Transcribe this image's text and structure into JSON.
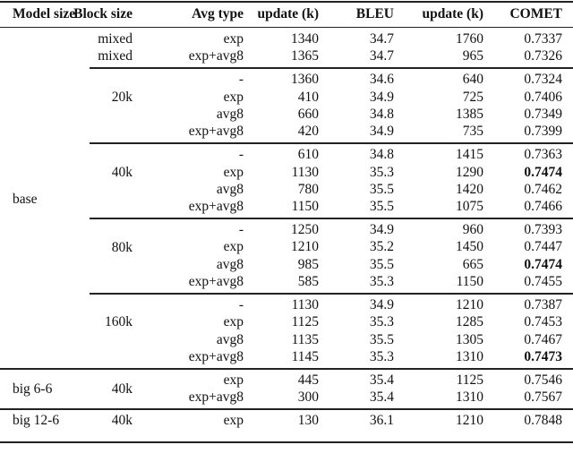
{
  "table": {
    "headers": [
      "Model size",
      "Block size",
      "Avg type",
      "update (k)",
      "BLEU",
      "update (k)",
      "COMET"
    ],
    "groups": [
      {
        "model": "",
        "block_labels": [
          "mixed",
          "mixed"
        ],
        "rows": [
          {
            "avg": "exp",
            "upd1": "1340",
            "bleu": "34.7",
            "upd2": "1760",
            "comet": "0.7337",
            "bold": false
          },
          {
            "avg": "exp+avg8",
            "upd1": "1365",
            "bleu": "34.7",
            "upd2": "965",
            "comet": "0.7326",
            "bold": false
          }
        ]
      },
      {
        "model": "",
        "block": "20k",
        "rows": [
          {
            "avg": "-",
            "upd1": "1360",
            "bleu": "34.6",
            "upd2": "640",
            "comet": "0.7324",
            "bold": false
          },
          {
            "avg": "exp",
            "upd1": "410",
            "bleu": "34.9",
            "upd2": "725",
            "comet": "0.7406",
            "bold": false
          },
          {
            "avg": "avg8",
            "upd1": "660",
            "bleu": "34.8",
            "upd2": "1385",
            "comet": "0.7349",
            "bold": false
          },
          {
            "avg": "exp+avg8",
            "upd1": "420",
            "bleu": "34.9",
            "upd2": "735",
            "comet": "0.7399",
            "bold": false
          }
        ]
      },
      {
        "model": "",
        "block": "40k",
        "rows": [
          {
            "avg": "-",
            "upd1": "610",
            "bleu": "34.8",
            "upd2": "1415",
            "comet": "0.7363",
            "bold": false
          },
          {
            "avg": "exp",
            "upd1": "1130",
            "bleu": "35.3",
            "upd2": "1290",
            "comet": "0.7474",
            "bold": true
          },
          {
            "avg": "avg8",
            "upd1": "780",
            "bleu": "35.5",
            "upd2": "1420",
            "comet": "0.7462",
            "bold": false
          },
          {
            "avg": "exp+avg8",
            "upd1": "1150",
            "bleu": "35.5",
            "upd2": "1075",
            "comet": "0.7466",
            "bold": false
          }
        ]
      },
      {
        "model": "",
        "block": "80k",
        "rows": [
          {
            "avg": "-",
            "upd1": "1250",
            "bleu": "34.9",
            "upd2": "960",
            "comet": "0.7393",
            "bold": false
          },
          {
            "avg": "exp",
            "upd1": "1210",
            "bleu": "35.2",
            "upd2": "1450",
            "comet": "0.7447",
            "bold": false
          },
          {
            "avg": "avg8",
            "upd1": "985",
            "bleu": "35.5",
            "upd2": "665",
            "comet": "0.7474",
            "bold": true
          },
          {
            "avg": "exp+avg8",
            "upd1": "585",
            "bleu": "35.3",
            "upd2": "1150",
            "comet": "0.7455",
            "bold": false
          }
        ]
      },
      {
        "model": "",
        "block": "160k",
        "rows": [
          {
            "avg": "-",
            "upd1": "1130",
            "bleu": "34.9",
            "upd2": "1210",
            "comet": "0.7387",
            "bold": false
          },
          {
            "avg": "exp",
            "upd1": "1125",
            "bleu": "35.3",
            "upd2": "1285",
            "comet": "0.7453",
            "bold": false
          },
          {
            "avg": "avg8",
            "upd1": "1135",
            "bleu": "35.5",
            "upd2": "1305",
            "comet": "0.7467",
            "bold": false
          },
          {
            "avg": "exp+avg8",
            "upd1": "1145",
            "bleu": "35.3",
            "upd2": "1310",
            "comet": "0.7473",
            "bold": true
          }
        ]
      },
      {
        "model": "big 6-6",
        "block": "40k",
        "rows": [
          {
            "avg": "exp",
            "upd1": "445",
            "bleu": "35.4",
            "upd2": "1125",
            "comet": "0.7546",
            "bold": false
          },
          {
            "avg": "exp+avg8",
            "upd1": "300",
            "bleu": "35.4",
            "upd2": "1310",
            "comet": "0.7567",
            "bold": false
          }
        ]
      },
      {
        "model": "big 12-6",
        "block": "40k",
        "rows": [
          {
            "avg": "exp",
            "upd1": "130",
            "bleu": "36.1",
            "upd2": "1210",
            "comet": "0.7848",
            "bold": false
          }
        ]
      }
    ],
    "base_label": "base"
  }
}
